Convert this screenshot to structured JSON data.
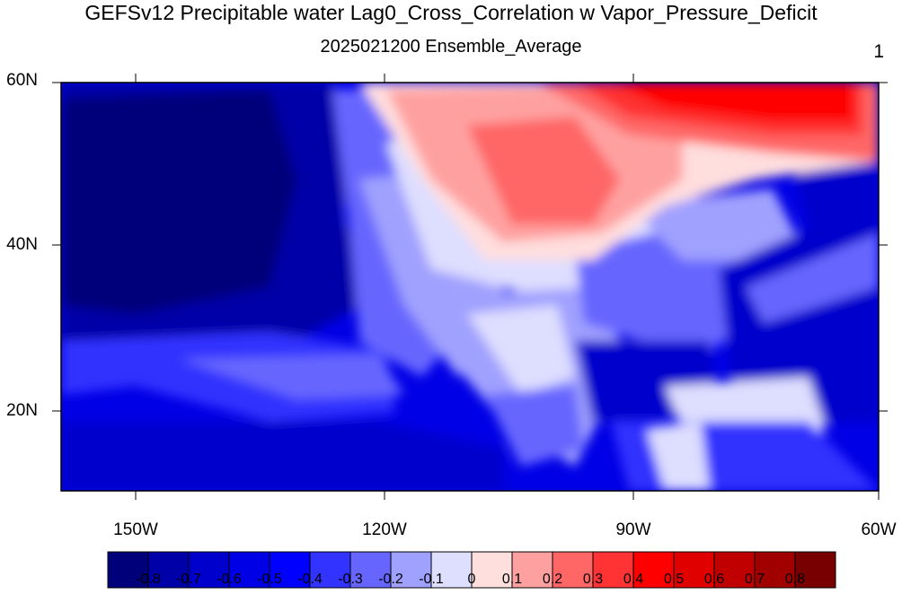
{
  "title": "GEFSv12 Precipitable water Lag0_Cross_Correlation w Vapor_Pressure_Deficit",
  "subtitle": "2025021200 Ensemble_Average",
  "corner_label": "1",
  "lat_labels": [
    "60N",
    "40N",
    "20N"
  ],
  "lon_labels": [
    "150W",
    "120W",
    "90W",
    "60W"
  ],
  "colorbar": {
    "colors": [
      "#00007a",
      "#0000a8",
      "#0000cc",
      "#0000e6",
      "#0000ff",
      "#3333ff",
      "#6666ff",
      "#a0a0ff",
      "#dedeff",
      "#ffdede",
      "#ffa0a0",
      "#ff6666",
      "#ff3333",
      "#ff0000",
      "#e00000",
      "#c00000",
      "#a00000",
      "#780000"
    ],
    "labels": [
      "-0.8",
      "-0.7",
      "-0.6",
      "-0.5",
      "-0.4",
      "-0.3",
      "-0.2",
      "-0.1",
      "0",
      "0.1",
      "0.2",
      "0.3",
      "0.4",
      "0.5",
      "0.6",
      "0.7",
      "0.8"
    ]
  }
}
